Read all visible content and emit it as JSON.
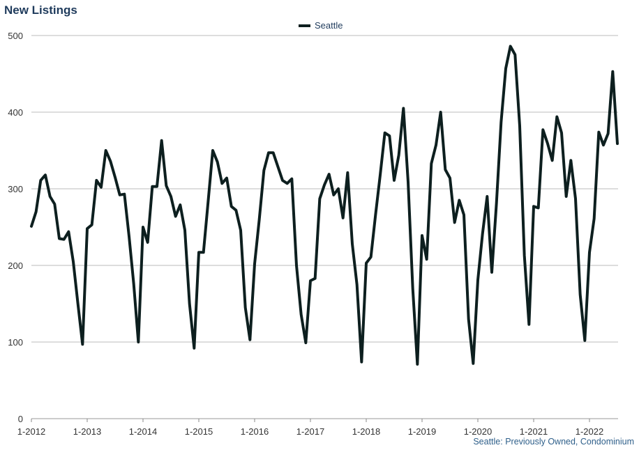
{
  "chart_data": {
    "type": "line",
    "title": "New Listings",
    "footnote": "Seattle: Previously Owned, Condominium",
    "xlabel": "",
    "ylabel": "",
    "ylim": [
      0,
      500
    ],
    "yticks": [
      0,
      100,
      200,
      300,
      400,
      500
    ],
    "xticks": [
      "1-2012",
      "1-2013",
      "1-2014",
      "1-2015",
      "1-2016",
      "1-2017",
      "1-2018",
      "1-2019",
      "1-2020",
      "1-2021",
      "1-2022"
    ],
    "grid": true,
    "legend_position": "top-center",
    "series": [
      {
        "name": "Seattle",
        "color": "#0d1f1f",
        "start": "1-2012",
        "frequency": "monthly",
        "values": [
          251,
          270,
          311,
          318,
          290,
          280,
          235,
          234,
          244,
          205,
          150,
          97,
          248,
          253,
          311,
          302,
          350,
          336,
          315,
          292,
          293,
          238,
          176,
          100,
          250,
          230,
          303,
          303,
          363,
          304,
          290,
          264,
          279,
          246,
          150,
          92,
          217,
          217,
          283,
          350,
          335,
          307,
          314,
          277,
          272,
          246,
          145,
          103,
          202,
          260,
          324,
          347,
          347,
          329,
          311,
          307,
          313,
          200,
          136,
          99,
          180,
          183,
          287,
          305,
          319,
          292,
          300,
          262,
          321,
          228,
          175,
          74,
          203,
          211,
          266,
          318,
          373,
          369,
          311,
          344,
          405,
          309,
          170,
          71,
          239,
          208,
          333,
          357,
          400,
          325,
          314,
          256,
          285,
          266,
          130,
          72,
          181,
          241,
          290,
          191,
          281,
          387,
          457,
          486,
          475,
          382,
          213,
          123,
          277,
          275,
          377,
          359,
          337,
          394,
          373,
          290,
          337,
          287,
          162,
          102,
          217,
          261,
          374,
          357,
          372,
          453,
          359
        ]
      }
    ]
  }
}
